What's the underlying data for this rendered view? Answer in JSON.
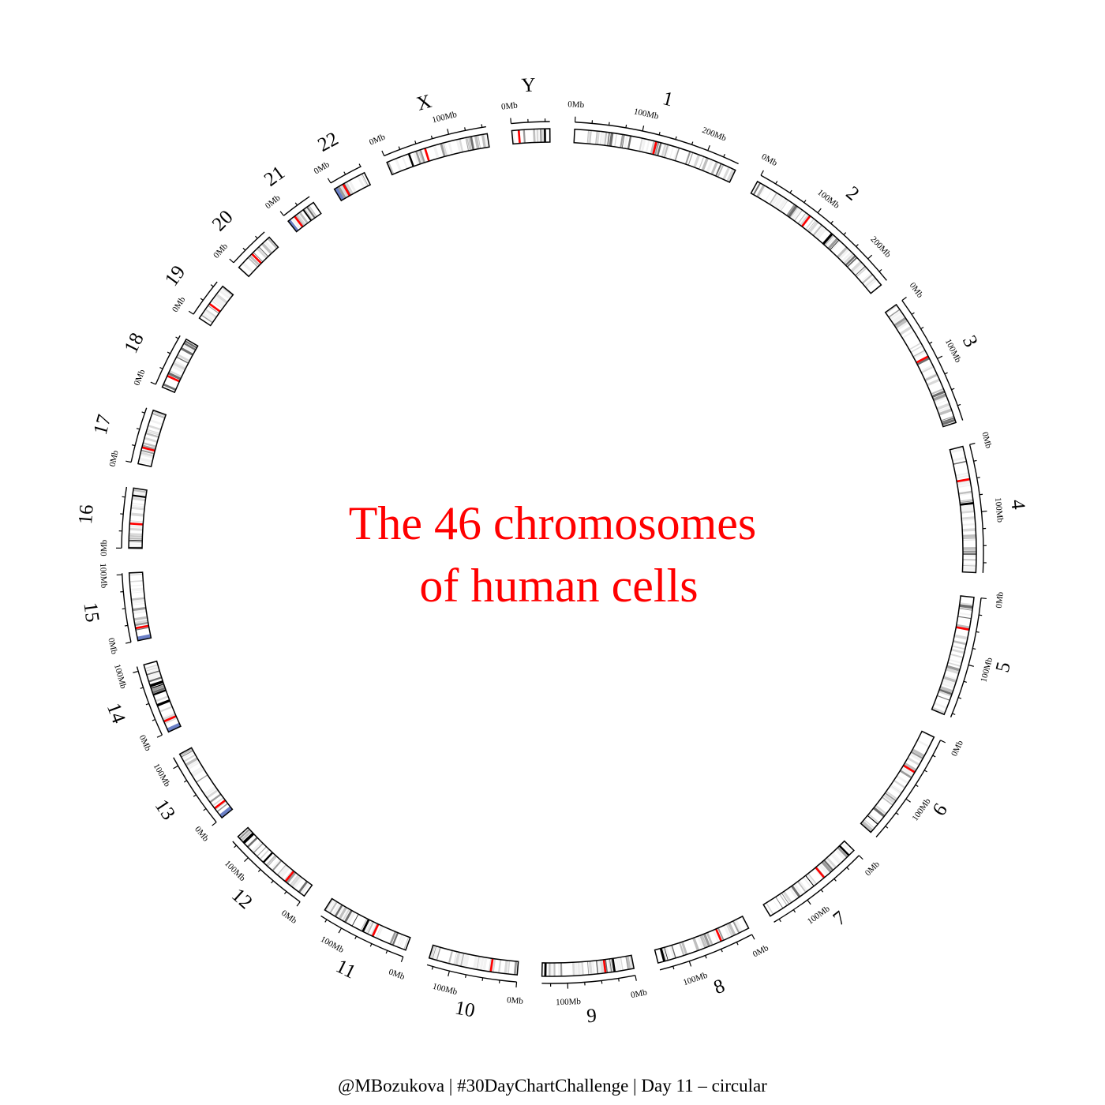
{
  "title_lines": [
    "The 46 chromosomes",
    "of human cells"
  ],
  "caption": "@MBozukova | #30DayChartChallenge | Day 11 – circular",
  "colors": {
    "title": "#ff0000",
    "centromere": "#ff0000",
    "acrocentric": "#6a7fc6",
    "outline": "#000000"
  },
  "chart_data": {
    "type": "circular-ideogram",
    "title": "The 46 chromosomes of human cells",
    "tick_unit": "Mb",
    "chromosomes": [
      {
        "name": "1",
        "length_mb": 249,
        "centromere_mb": 123.4,
        "ticks": [
          "0Mb",
          "100Mb",
          "200Mb"
        ]
      },
      {
        "name": "2",
        "length_mb": 242,
        "centromere_mb": 93.9,
        "ticks": [
          "0Mb",
          "100Mb",
          "200Mb"
        ]
      },
      {
        "name": "3",
        "length_mb": 198,
        "centromere_mb": 90.9,
        "ticks": [
          "0Mb",
          "100Mb"
        ]
      },
      {
        "name": "4",
        "length_mb": 190,
        "centromere_mb": 50.0,
        "ticks": [
          "0Mb",
          "100Mb"
        ]
      },
      {
        "name": "5",
        "length_mb": 181,
        "centromere_mb": 48.8,
        "ticks": [
          "0Mb",
          "100Mb"
        ]
      },
      {
        "name": "6",
        "length_mb": 171,
        "centromere_mb": 59.8,
        "ticks": [
          "0Mb",
          "100Mb"
        ]
      },
      {
        "name": "7",
        "length_mb": 159,
        "centromere_mb": 60.1,
        "ticks": [
          "0Mb",
          "100Mb"
        ]
      },
      {
        "name": "8",
        "length_mb": 145,
        "centromere_mb": 45.2,
        "ticks": [
          "0Mb",
          "100Mb"
        ]
      },
      {
        "name": "9",
        "length_mb": 138,
        "centromere_mb": 43.0,
        "ticks": [
          "0Mb",
          "100Mb"
        ]
      },
      {
        "name": "10",
        "length_mb": 134,
        "centromere_mb": 39.8,
        "ticks": [
          "0Mb",
          "100Mb"
        ]
      },
      {
        "name": "11",
        "length_mb": 135,
        "centromere_mb": 53.4,
        "ticks": [
          "0Mb",
          "100Mb"
        ]
      },
      {
        "name": "12",
        "length_mb": 133,
        "centromere_mb": 35.5,
        "ticks": [
          "0Mb",
          "100Mb"
        ]
      },
      {
        "name": "13",
        "length_mb": 114,
        "centromere_mb": 17.7,
        "ticks": [
          "0Mb",
          "100Mb"
        ]
      },
      {
        "name": "14",
        "length_mb": 107,
        "centromere_mb": 17.2,
        "ticks": [
          "0Mb",
          "100Mb"
        ]
      },
      {
        "name": "15",
        "length_mb": 102,
        "centromere_mb": 19.0,
        "ticks": [
          "0Mb",
          "100Mb"
        ]
      },
      {
        "name": "16",
        "length_mb": 90,
        "centromere_mb": 36.8,
        "ticks": [
          "0Mb"
        ]
      },
      {
        "name": "17",
        "length_mb": 83,
        "centromere_mb": 25.1,
        "ticks": [
          "0Mb"
        ]
      },
      {
        "name": "18",
        "length_mb": 80,
        "centromere_mb": 18.5,
        "ticks": [
          "0Mb"
        ]
      },
      {
        "name": "19",
        "length_mb": 59,
        "centromere_mb": 26.2,
        "ticks": [
          "0Mb"
        ]
      },
      {
        "name": "20",
        "length_mb": 64,
        "centromere_mb": 28.1,
        "ticks": [
          "0Mb"
        ]
      },
      {
        "name": "21",
        "length_mb": 47,
        "centromere_mb": 12.0,
        "ticks": [
          "0Mb"
        ]
      },
      {
        "name": "22",
        "length_mb": 51,
        "centromere_mb": 15.0,
        "ticks": [
          "0Mb"
        ]
      },
      {
        "name": "X",
        "length_mb": 156,
        "centromere_mb": 60.6,
        "ticks": [
          "0Mb",
          "100Mb"
        ]
      },
      {
        "name": "Y",
        "length_mb": 57,
        "centromere_mb": 10.4,
        "ticks": [
          "0Mb"
        ]
      }
    ]
  }
}
